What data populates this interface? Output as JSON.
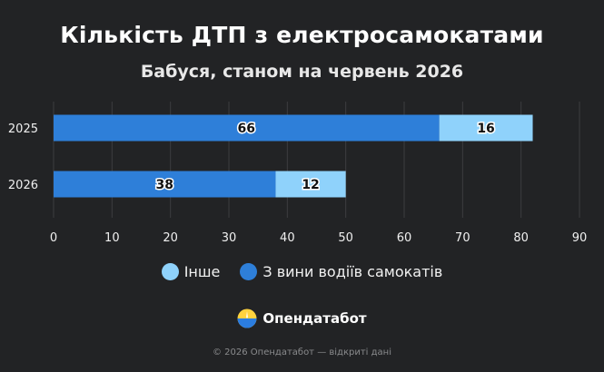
{
  "title": "Кількість ДТП з електросамокатами",
  "subtitle": "Бабуся, станом на червень 2026",
  "chart_data": {
    "type": "bar",
    "orientation": "horizontal",
    "stacked": true,
    "categories": [
      "2025",
      "2026"
    ],
    "series": [
      {
        "name": "З вини водіїв самокатів",
        "values": [
          66,
          38
        ],
        "color": "#2e7fd9"
      },
      {
        "name": "Інше",
        "values": [
          16,
          12
        ],
        "color": "#8fd2fb"
      }
    ],
    "xlim": [
      0,
      90
    ],
    "xticks": [
      0,
      10,
      20,
      30,
      40,
      50,
      60,
      70,
      80,
      90
    ],
    "grid": true,
    "legend_position": "bottom"
  },
  "legend": [
    {
      "label": "Інше",
      "color": "#8fd2fb"
    },
    {
      "label": "З вини водіїв самокатів",
      "color": "#2e7fd9"
    }
  ],
  "brand": {
    "name": "Опендатабот",
    "icon": "opendatabot-logo-icon"
  },
  "footer": "© 2026 Опендатабот — відкриті дані"
}
